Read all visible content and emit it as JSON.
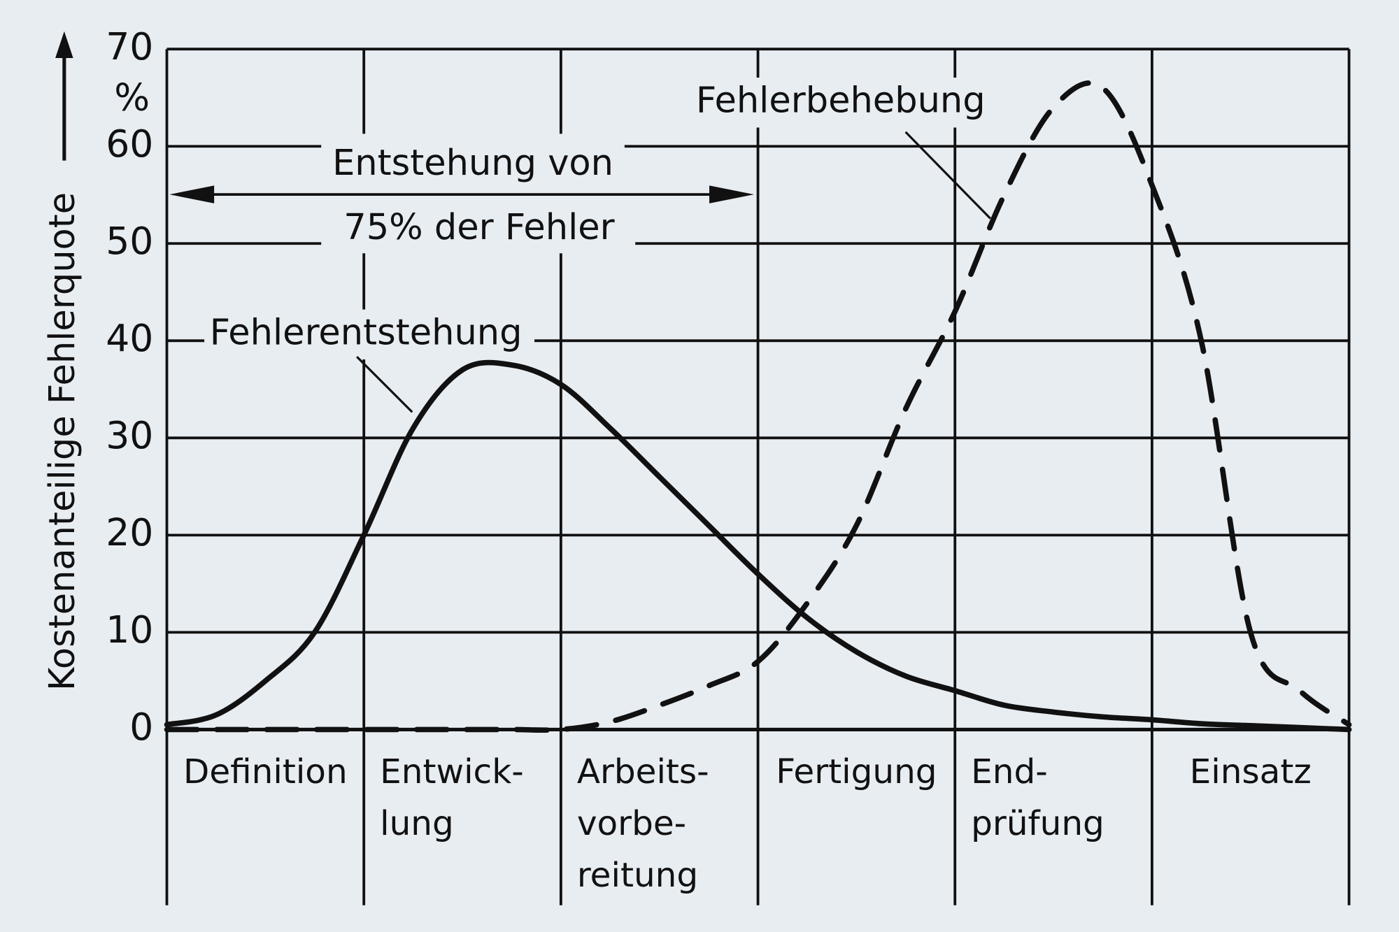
{
  "chart_data": {
    "type": "line",
    "y_label": "Kostenanteilige Fehlerquote",
    "y_unit": "%",
    "categories": [
      null,
      null,
      [
        "Definition"
      ],
      null,
      null,
      null,
      [
        "Entwick-",
        "lung"
      ],
      null,
      null,
      null,
      [
        "Arbeits-",
        "vorbe-",
        "reitung"
      ],
      null,
      null,
      null,
      [
        "Fertigung"
      ],
      null,
      null,
      null,
      [
        "End-",
        "prüfung"
      ],
      null,
      null,
      null,
      [
        "Einsatz"
      ],
      null,
      null
    ],
    "series": [
      {
        "name": "Fehlerentstehung",
        "color": "#111111",
        "dashed": false,
        "values": [
          0.5,
          1.5,
          5,
          10,
          20,
          31,
          37,
          37.5,
          35.5,
          31,
          26,
          21,
          16,
          11.5,
          8,
          5.5,
          4,
          2.5,
          1.8,
          1.3,
          1,
          0.6,
          0.4,
          0.2,
          0
        ]
      },
      {
        "name": "Fehlerbehebung",
        "color": "#111111",
        "dashed": true,
        "values": [
          0,
          0,
          0,
          0,
          0,
          0,
          0,
          0,
          0,
          0.8,
          2.5,
          4.5,
          7,
          13,
          21,
          33,
          43,
          55,
          64,
          66,
          56,
          40,
          10,
          4,
          0.5
        ]
      }
    ],
    "span_annotation": [
      "Entstehung von",
      "75% der Fehler"
    ],
    "ylim": [
      0,
      70
    ],
    "yticks": [
      0,
      10,
      20,
      30,
      40,
      50,
      60,
      70
    ],
    "grid": true
  }
}
